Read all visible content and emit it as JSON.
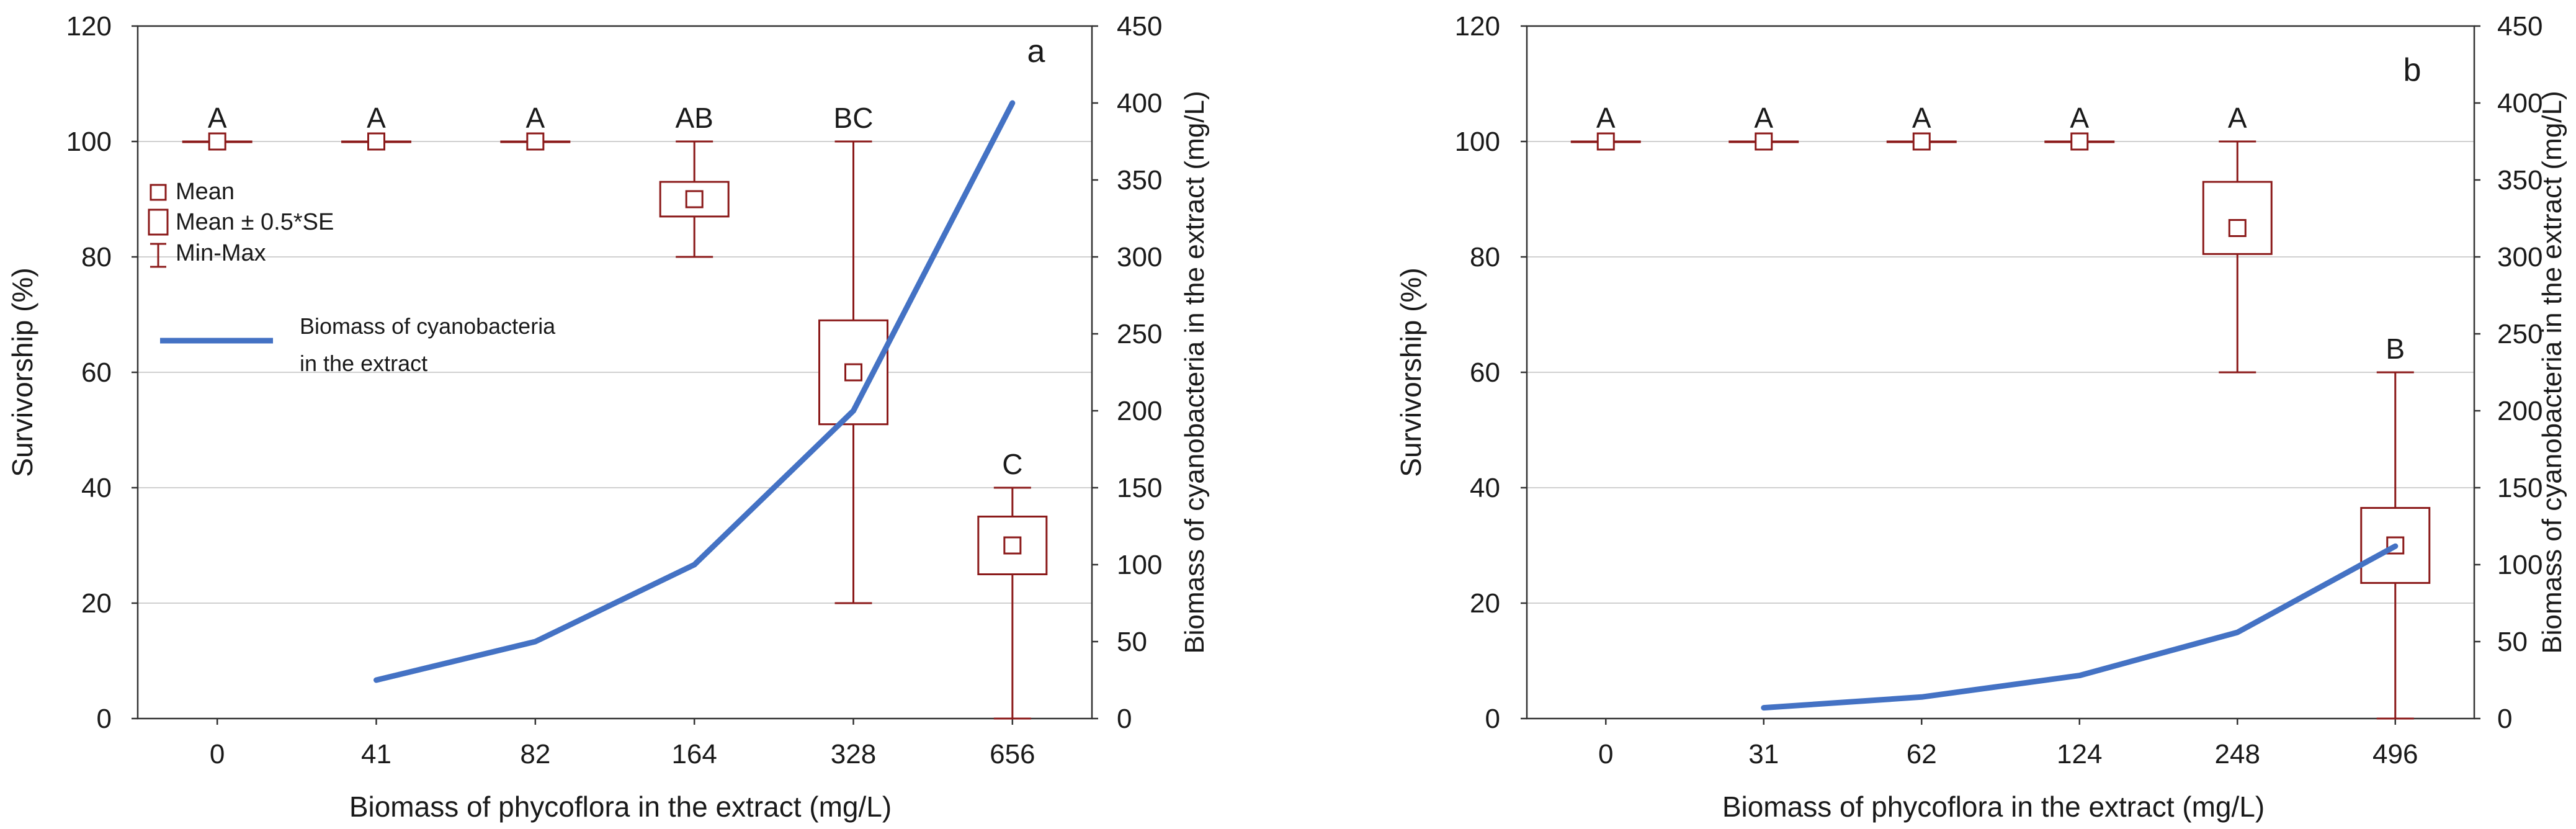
{
  "colors": {
    "box": "#8B1A1A",
    "line": "#4472C4",
    "grid": "#d0d0d0",
    "axis": "#333333",
    "text": "#1a1a1a"
  },
  "chart_data": [
    {
      "type": "box",
      "panel_label": "a",
      "xlabel": "Biomass of phycoflora in the extract (mg/L)",
      "ylabel": "Survivorship (%)",
      "y2label": "Biomass of cyanobacteria in the extract (mg/L)",
      "categories": [
        "0",
        "41",
        "82",
        "164",
        "328",
        "656"
      ],
      "ylim": [
        0,
        120
      ],
      "yticks": [
        "0",
        "20",
        "40",
        "60",
        "80",
        "100",
        "120"
      ],
      "y2lim": [
        0,
        450
      ],
      "y2ticks": [
        "0",
        "50",
        "100",
        "150",
        "200",
        "250",
        "300",
        "350",
        "400",
        "450"
      ],
      "grid": true,
      "survivorship": [
        {
          "mean": 100,
          "se_low": 100,
          "se_high": 100,
          "min": 100,
          "max": 100,
          "letter": "A"
        },
        {
          "mean": 100,
          "se_low": 100,
          "se_high": 100,
          "min": 100,
          "max": 100,
          "letter": "A"
        },
        {
          "mean": 100,
          "se_low": 100,
          "se_high": 100,
          "min": 100,
          "max": 100,
          "letter": "A"
        },
        {
          "mean": 90,
          "se_low": 87,
          "se_high": 93,
          "min": 80,
          "max": 100,
          "letter": "AB"
        },
        {
          "mean": 60,
          "se_low": 51,
          "se_high": 69,
          "min": 20,
          "max": 100,
          "letter": "BC"
        },
        {
          "mean": 30,
          "se_low": 25,
          "se_high": 35,
          "min": 0,
          "max": 40,
          "letter": "C"
        }
      ],
      "cyanobacteria_series": {
        "name": "Biomass of cyanobacteria in the extract",
        "x": [
          "41",
          "82",
          "164",
          "328",
          "656"
        ],
        "values": [
          25,
          50,
          100,
          200,
          400
        ]
      },
      "legend": {
        "mean": "Mean",
        "se": "Mean ± 0.5*SE",
        "minmax": "Min-Max",
        "line_line1": "Biomass of cyanobacteria",
        "line_line2": "in the extract"
      }
    },
    {
      "type": "box",
      "panel_label": "b",
      "xlabel": "Biomass of phycoflora in the extract (mg/L)",
      "ylabel": "Survivorship (%)",
      "y2label": "Biomass of cyanobacteria in the extract (mg/L)",
      "categories": [
        "0",
        "31",
        "62",
        "124",
        "248",
        "496"
      ],
      "ylim": [
        0,
        120
      ],
      "yticks": [
        "0",
        "20",
        "40",
        "60",
        "80",
        "100",
        "120"
      ],
      "y2lim": [
        0,
        450
      ],
      "y2ticks": [
        "0",
        "50",
        "100",
        "150",
        "200",
        "250",
        "300",
        "350",
        "400",
        "450"
      ],
      "grid": true,
      "survivorship": [
        {
          "mean": 100,
          "se_low": 100,
          "se_high": 100,
          "min": 100,
          "max": 100,
          "letter": "A"
        },
        {
          "mean": 100,
          "se_low": 100,
          "se_high": 100,
          "min": 100,
          "max": 100,
          "letter": "A"
        },
        {
          "mean": 100,
          "se_low": 100,
          "se_high": 100,
          "min": 100,
          "max": 100,
          "letter": "A"
        },
        {
          "mean": 100,
          "se_low": 100,
          "se_high": 100,
          "min": 100,
          "max": 100,
          "letter": "A"
        },
        {
          "mean": 85,
          "se_low": 80.5,
          "se_high": 93,
          "min": 60,
          "max": 100,
          "letter": "A"
        },
        {
          "mean": 30,
          "se_low": 23.5,
          "se_high": 36.5,
          "min": 0,
          "max": 60,
          "letter": "B"
        }
      ],
      "cyanobacteria_series": {
        "name": "",
        "x": [
          "31",
          "62",
          "124",
          "248",
          "496"
        ],
        "values": [
          7,
          14,
          28,
          56,
          112
        ]
      }
    }
  ]
}
